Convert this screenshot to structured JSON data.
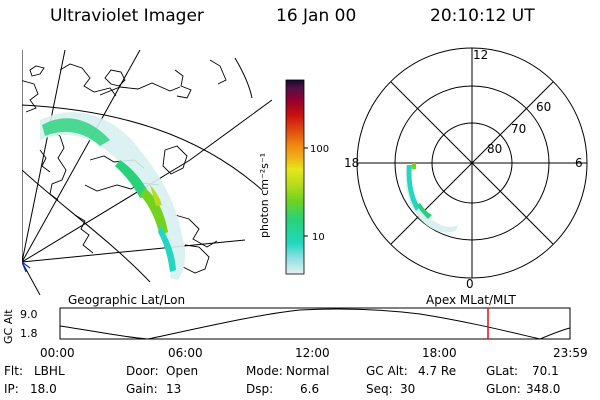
{
  "header": {
    "instrument": "Ultraviolet Imager",
    "date": "16 Jan 00",
    "time": "20:10:12 UT"
  },
  "panels": {
    "geo_label": "Geographic Lat/Lon",
    "apex_label": "Apex  MLat/MLT"
  },
  "colorbar": {
    "label": "photon cm⁻²s⁻¹",
    "tick_labels": [
      "100",
      "10"
    ],
    "stops": [
      "#e6f0f0",
      "#8fe0e6",
      "#23d6bf",
      "#27d27a",
      "#72d21e",
      "#b8dc1b",
      "#e6e51a",
      "#f0b018",
      "#f08a12",
      "#e04a10",
      "#c81010",
      "#900030",
      "#501048",
      "#120a28"
    ]
  },
  "polar_plot": {
    "mlt_labels": {
      "top": "12",
      "left": "18",
      "right": "6",
      "bottom": "0"
    },
    "lat_labels": [
      "60",
      "70",
      "80"
    ]
  },
  "gc_alt_strip": {
    "axis_label": "GC Alt",
    "y_ticks": [
      "9.0",
      "1.8"
    ],
    "x_ticks": [
      "00:00",
      "06:00",
      "12:00",
      "18:00",
      "23:59"
    ],
    "marker_color": "#e01010"
  },
  "status": {
    "filter": {
      "label": "Flt:",
      "value": "LBHL"
    },
    "ip": {
      "label": "IP:",
      "value": "18.0"
    },
    "door": {
      "label": "Door:",
      "value": "Open"
    },
    "gain": {
      "label": "Gain:",
      "value": "13"
    },
    "mode": {
      "label": "Mode:",
      "value": "Normal"
    },
    "dsp": {
      "label": "Dsp:",
      "value": "6.6"
    },
    "gc_alt": {
      "label": "GC Alt:",
      "value": "4.7 Re"
    },
    "seq": {
      "label": "Seq:",
      "value": "30"
    },
    "glat": {
      "label": "GLat:",
      "value": "70.1"
    },
    "glon": {
      "label": "GLon:",
      "value": "348.0"
    }
  }
}
